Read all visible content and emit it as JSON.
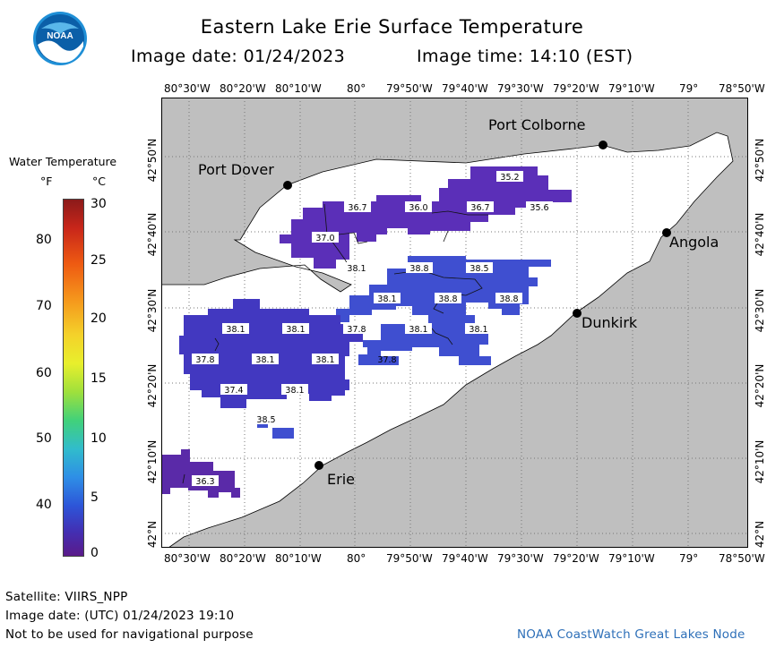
{
  "header": {
    "title": "Eastern Lake Erie Surface Temperature",
    "image_date": "Image date: 01/24/2023",
    "image_time": "Image time: 14:10 (EST)",
    "logo_text": "NOAA"
  },
  "legend": {
    "title": "Water Temperature",
    "unit_f": "°F",
    "unit_c": "°C",
    "f_labels": [
      "80",
      "70",
      "60",
      "50",
      "40"
    ],
    "c_labels": [
      "30",
      "25",
      "20",
      "15",
      "10",
      "5",
      "0"
    ]
  },
  "axes": {
    "lon_labels": [
      "80°30'W",
      "80°20'W",
      "80°10'W",
      "80°",
      "79°50'W",
      "79°40'W",
      "79°30'W",
      "79°20'W",
      "79°10'W",
      "79°",
      "78°50'W"
    ],
    "lat_labels": [
      "42°50'N",
      "42°40'N",
      "42°30'N",
      "42°20'N",
      "42°10'N",
      "42°N"
    ]
  },
  "places": [
    {
      "name": "Port Colborne"
    },
    {
      "name": "Port Dover"
    },
    {
      "name": "Angola"
    },
    {
      "name": "Dunkirk"
    },
    {
      "name": "Erie"
    }
  ],
  "temp_labels": [
    "35.2",
    "36.7",
    "36.0",
    "36.7",
    "35.6",
    "37.0",
    "38.1",
    "38.8",
    "38.5",
    "38.1",
    "38.8",
    "38.8",
    "38.1",
    "38.1",
    "37.8",
    "38.1",
    "38.1",
    "37.8",
    "38.1",
    "38.1",
    "37.8",
    "37.4",
    "38.1",
    "38.5",
    "36.3"
  ],
  "colors": {
    "land": "#bfbfbf",
    "lake": "#ffffff",
    "water_purple": "#5b2fb8",
    "water_blue": "#3f4fd0",
    "footer_link": "#2d6fb8"
  },
  "footer": {
    "satellite": "Satellite: VIIRS_NPP",
    "utc_date": "Image date: (UTC) 01/24/2023  19:10",
    "disclaimer": "Not to be used for navigational purpose",
    "credit": "NOAA CoastWatch Great Lakes Node"
  }
}
